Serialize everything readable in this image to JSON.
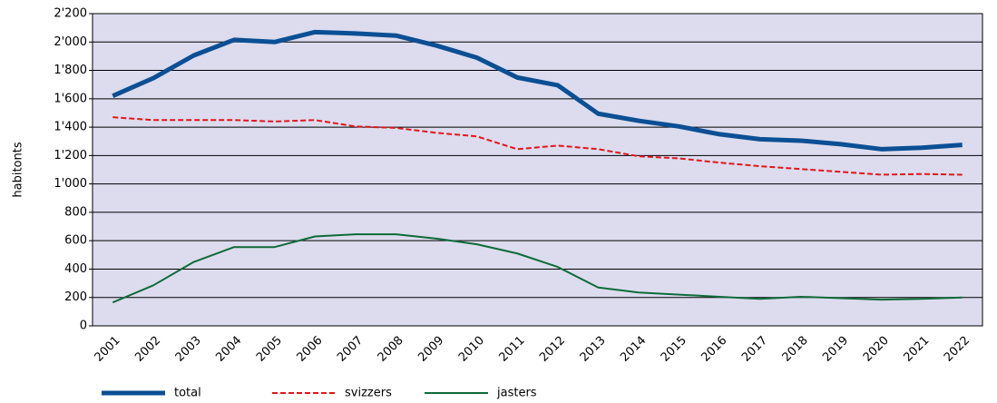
{
  "chart_data": {
    "type": "line",
    "y_label": "habitonts",
    "categories": [
      "2001",
      "2002",
      "2003",
      "2004",
      "2005",
      "2006",
      "2007",
      "2008",
      "2009",
      "2010",
      "2011",
      "2012",
      "2013",
      "2014",
      "2015",
      "2016",
      "2017",
      "2018",
      "2019",
      "2020",
      "2021",
      "2022"
    ],
    "series": [
      {
        "name": "total",
        "color": "#0b4f94",
        "values": [
          1620,
          1745,
          1905,
          2015,
          2000,
          2070,
          2060,
          2045,
          1975,
          1890,
          1750,
          1695,
          1495,
          1445,
          1405,
          1350,
          1315,
          1305,
          1280,
          1245,
          1255,
          1275
        ]
      },
      {
        "name": "svizzers",
        "color": "#e3151a",
        "dashed": true,
        "values": [
          1470,
          1450,
          1450,
          1450,
          1440,
          1450,
          1405,
          1395,
          1360,
          1335,
          1245,
          1270,
          1245,
          1195,
          1180,
          1150,
          1125,
          1105,
          1085,
          1065,
          1070,
          1065
        ]
      },
      {
        "name": "jasters",
        "color": "#0e6b3a",
        "values": [
          165,
          285,
          450,
          555,
          555,
          630,
          645,
          645,
          615,
          575,
          510,
          415,
          270,
          235,
          220,
          205,
          190,
          205,
          195,
          185,
          190,
          200
        ]
      }
    ],
    "ylim": [
      0,
      2200
    ],
    "yticks": [
      0,
      200,
      400,
      600,
      800,
      {
        "value": 1000,
        "label": "1'000"
      },
      {
        "value": 1200,
        "label": "1'200"
      },
      {
        "value": 1400,
        "label": "1'400"
      },
      {
        "value": 1600,
        "label": "1'600"
      },
      {
        "value": 1800,
        "label": "1'800"
      },
      {
        "value": 2000,
        "label": "2'000"
      },
      {
        "value": 2200,
        "label": "2'200"
      }
    ],
    "grid": true,
    "legend": "bottom"
  }
}
